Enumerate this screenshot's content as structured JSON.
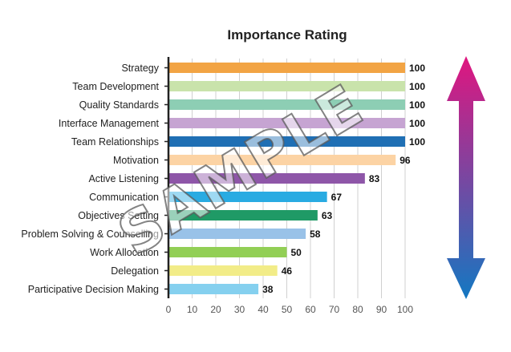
{
  "chart_data": {
    "type": "bar",
    "orientation": "horizontal",
    "title": "Importance Rating",
    "categories": [
      "Strategy",
      "Team Development",
      "Quality Standards",
      "Interface Management",
      "Team Relationships",
      "Motivation",
      "Active Listening",
      "Communication",
      "Objectives Setting",
      "Problem Solving & Counselling",
      "Work Allocation",
      "Delegation",
      "Participative Decision Making"
    ],
    "values": [
      100,
      100,
      100,
      100,
      100,
      96,
      83,
      67,
      63,
      58,
      50,
      46,
      38
    ],
    "value_labels": [
      "100",
      "100",
      "100",
      "100",
      "100",
      "96",
      "83",
      "67",
      "63",
      "58",
      "50",
      "46",
      "38"
    ],
    "bar_colors": [
      "#f2a444",
      "#c9e3ab",
      "#8dceb4",
      "#c6a4d2",
      "#1f6fb4",
      "#fcd3a4",
      "#8e56a8",
      "#29abe2",
      "#1f9a66",
      "#99c2e8",
      "#92cf55",
      "#f2ec88",
      "#85d0ef"
    ],
    "xlim": [
      0,
      100
    ],
    "xticks": [
      "0",
      "10",
      "20",
      "30",
      "40",
      "50",
      "60",
      "70",
      "80",
      "90",
      "100"
    ],
    "grid": "vertical",
    "arrow_gradient": [
      "#e0157f",
      "#1378c2"
    ]
  },
  "watermark": "SAMPLE"
}
